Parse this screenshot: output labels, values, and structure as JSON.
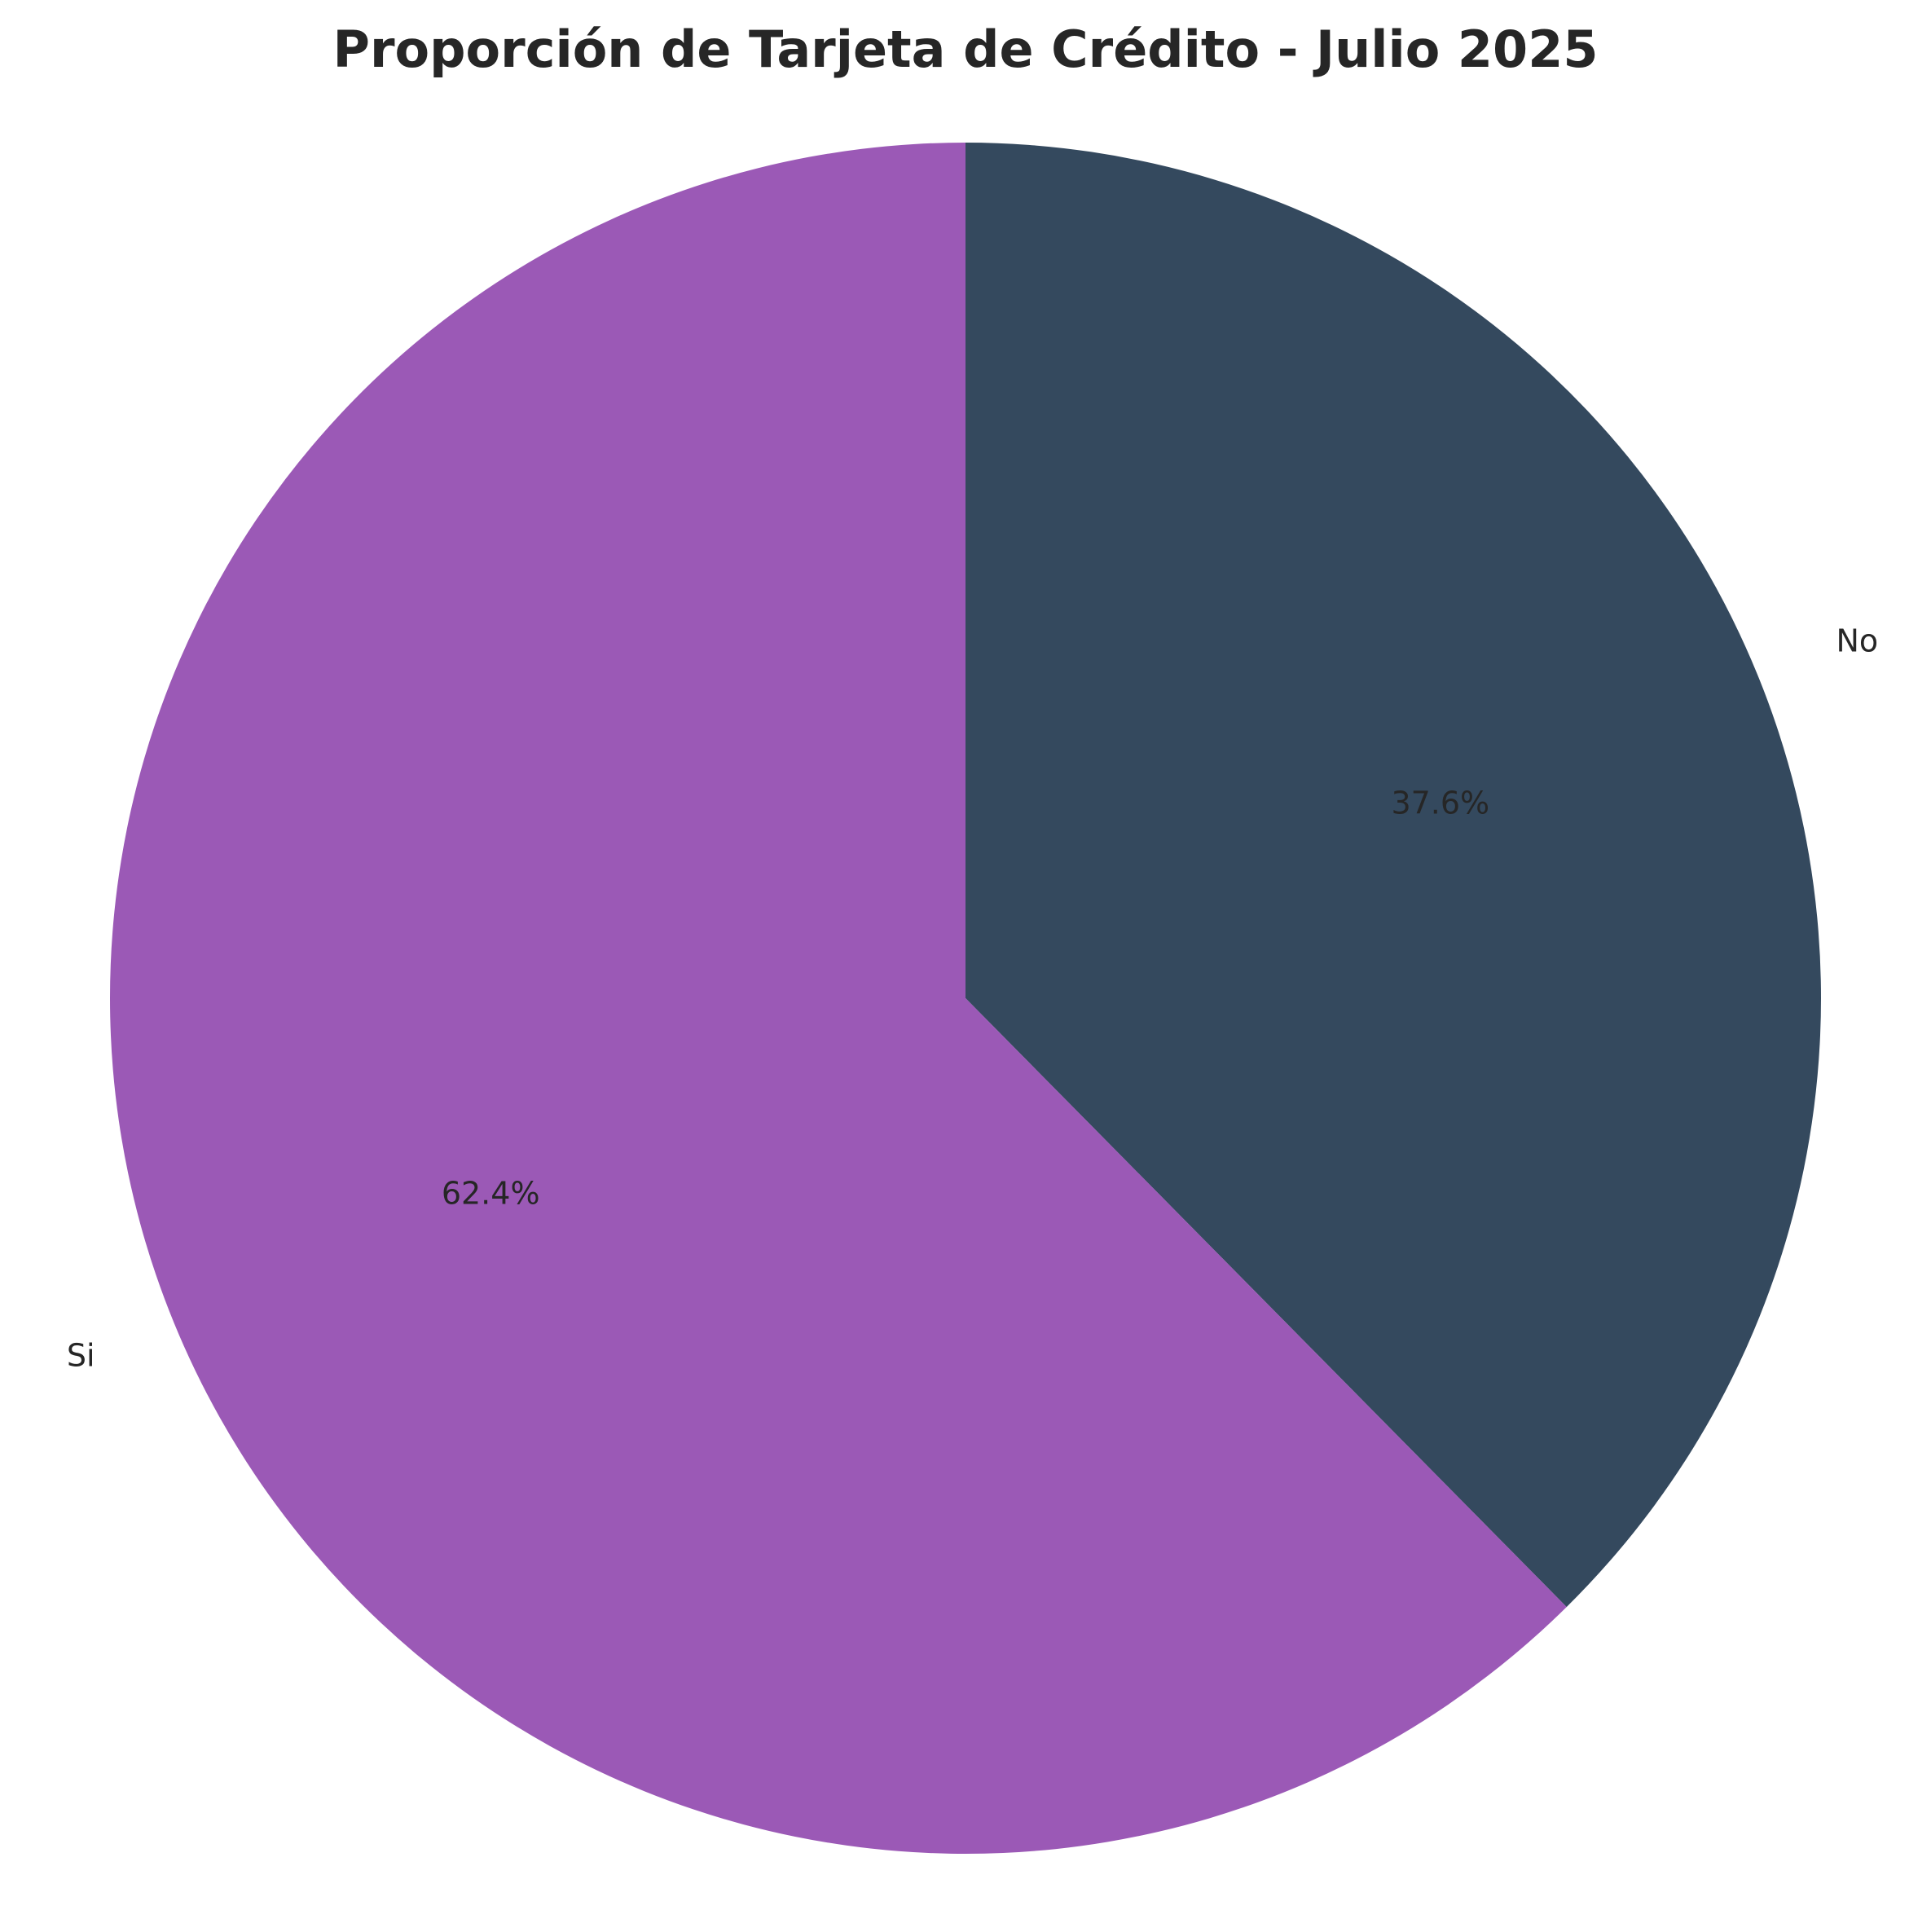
{
  "chart_data": {
    "type": "pie",
    "title": "Proporción de Tarjeta de Crédito - Julio 2025",
    "slices": [
      {
        "label": "No",
        "value": 37.6,
        "pct_label": "37.6%",
        "color": "#34495e"
      },
      {
        "label": "Si",
        "value": 62.4,
        "pct_label": "62.4%",
        "color": "#9b59b6"
      }
    ],
    "start_angle": "top",
    "direction": "clockwise"
  }
}
